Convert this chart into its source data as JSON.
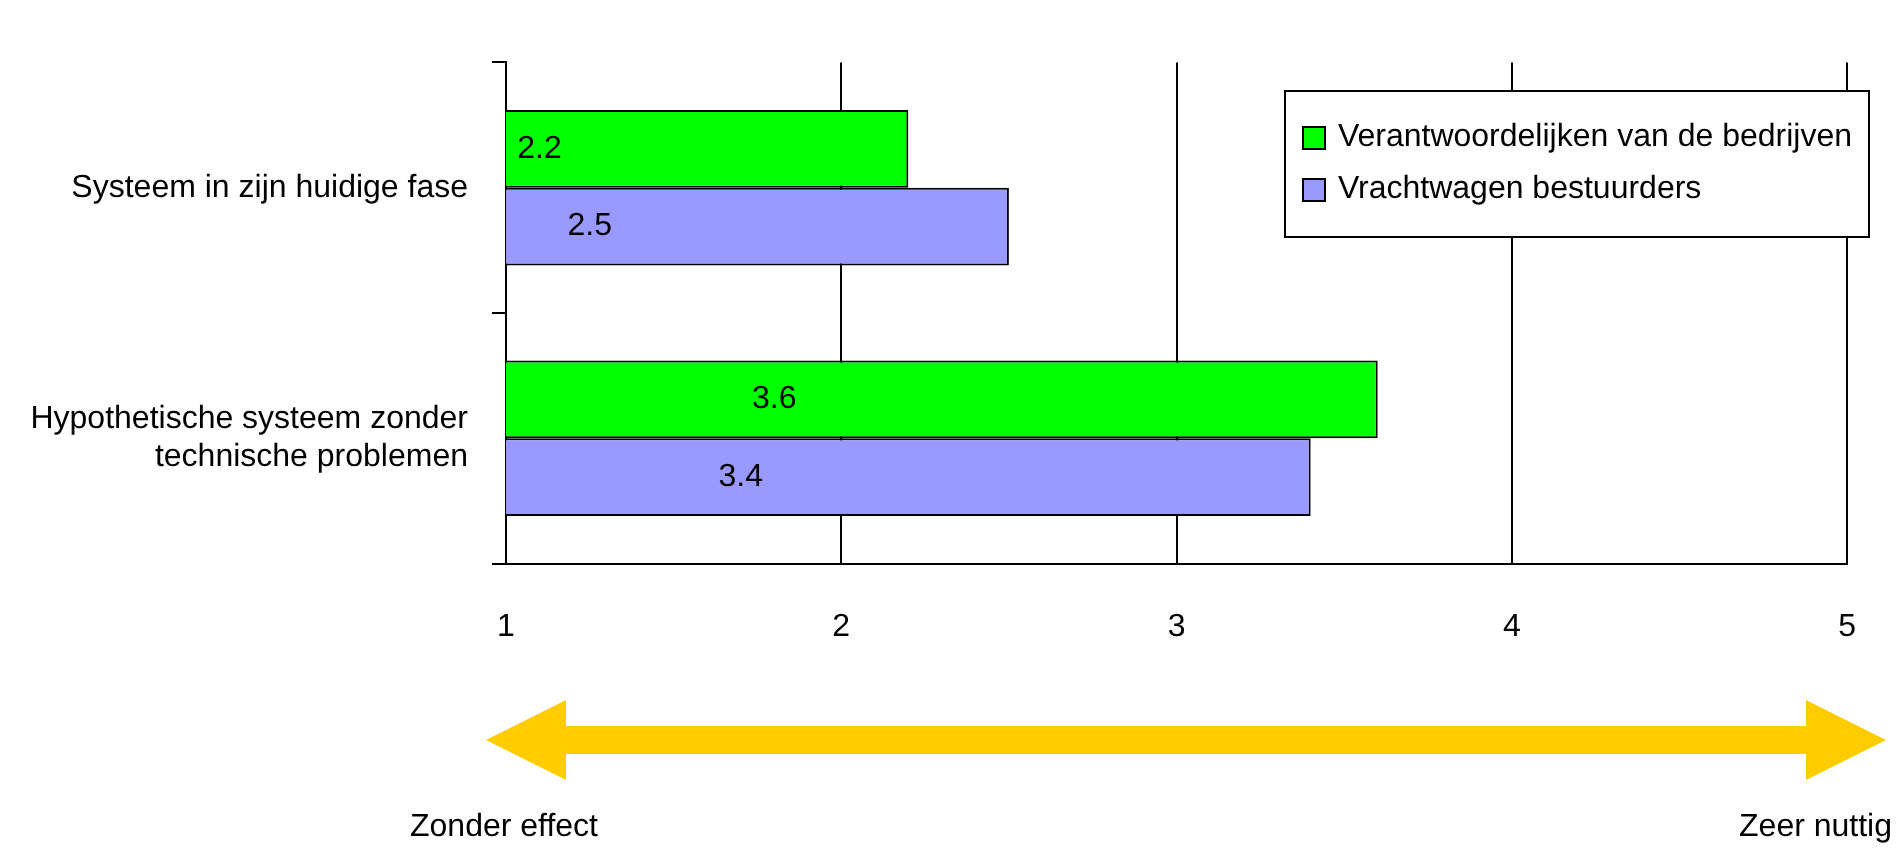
{
  "chart_data": {
    "type": "bar",
    "orientation": "horizontal",
    "categories": [
      "Systeem in zijn huidige fase",
      "Hypothetische systeem zonder technische problemen"
    ],
    "series": [
      {
        "name": "Verantwoordelijken van de bedrijven",
        "color": "#00ff00",
        "values": [
          2.2,
          3.6
        ]
      },
      {
        "name": "Vrachtwagen bestuurders",
        "color": "#9999ff",
        "values": [
          2.5,
          3.4
        ]
      }
    ],
    "xlim": [
      1,
      5
    ],
    "xticks": [
      1,
      2,
      3,
      4,
      5
    ],
    "grid": "x",
    "legend": "top right",
    "data_labels": true,
    "annotations": [
      "Zonder effect",
      "Zeer nuttig"
    ]
  }
}
